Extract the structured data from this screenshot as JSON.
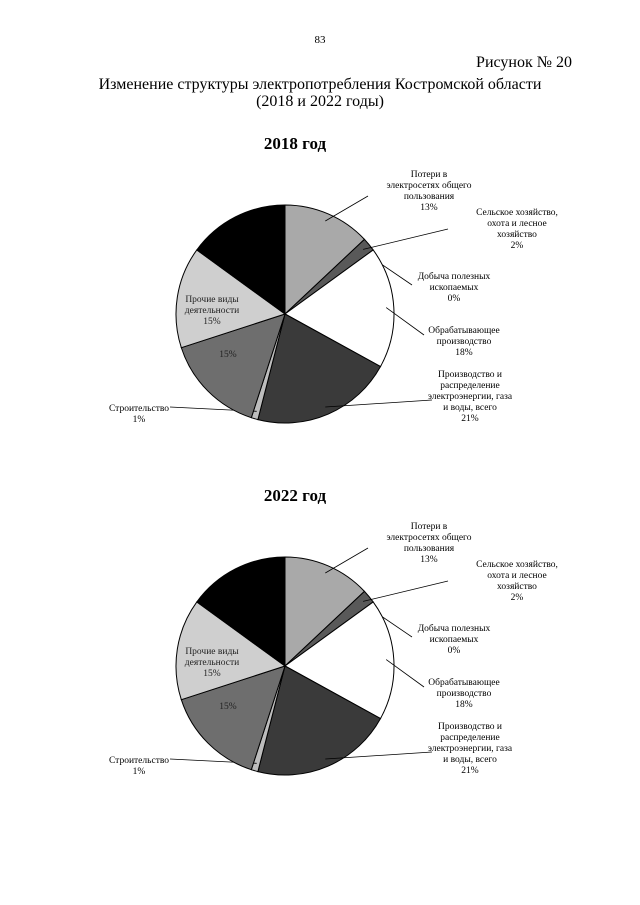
{
  "page": {
    "number": "83"
  },
  "figure": {
    "label": "Рисунок № 20",
    "title_line1": "Изменение структуры электропотребления Костромской области",
    "title_line2": "(2018 и 2022 годы)"
  },
  "colors": {
    "loss": "#a9a9a9",
    "agri": "#595959",
    "mining": "#ffffff",
    "manuf": "#ffffff",
    "energy": "#3a3a3a",
    "constr": "#bdbdbd",
    "transport": "#6e6e6e",
    "other": "#cfcfcf",
    "unlabeled": "#000000"
  },
  "chart_data": [
    {
      "type": "pie",
      "title": "2018 год",
      "slices": [
        {
          "key": "loss",
          "label": [
            "Потери  в",
            "электросетях общего",
            "пользования"
          ],
          "value": 13,
          "value_label": "13%"
        },
        {
          "key": "agri",
          "label": [
            "Сельское хозяйство,",
            "охота и лесное",
            "хозяйство"
          ],
          "value": 2,
          "value_label": "2%"
        },
        {
          "key": "mining",
          "label": [
            "Добыча полезных",
            "ископаемых"
          ],
          "value": 0,
          "value_label": "0%"
        },
        {
          "key": "manuf",
          "label": [
            "Обрабатывающее",
            "производство"
          ],
          "value": 18,
          "value_label": "18%"
        },
        {
          "key": "energy",
          "label": [
            "Производство и",
            "распределение",
            "электроэнергии, газа",
            "и воды, всего"
          ],
          "value": 21,
          "value_label": "21%"
        },
        {
          "key": "constr",
          "label": [
            "Строительство"
          ],
          "value": 1,
          "value_label": "1%"
        },
        {
          "key": "transport",
          "label": [],
          "value": 15,
          "value_label": "15%"
        },
        {
          "key": "other",
          "label": [
            "Прочие виды",
            "деятельности"
          ],
          "value": 15,
          "value_label": "15%"
        },
        {
          "key": "unlabeled",
          "label": [],
          "value": 15,
          "value_label": ""
        }
      ]
    },
    {
      "type": "pie",
      "title": "2022 год",
      "slices": [
        {
          "key": "loss",
          "label": [
            "Потери  в",
            "электросетях общего",
            "пользования"
          ],
          "value": 13,
          "value_label": "13%"
        },
        {
          "key": "agri",
          "label": [
            "Сельское хозяйство,",
            "охота и лесное",
            "хозяйство"
          ],
          "value": 2,
          "value_label": "2%"
        },
        {
          "key": "mining",
          "label": [
            "Добыча полезных",
            "ископаемых"
          ],
          "value": 0,
          "value_label": "0%"
        },
        {
          "key": "manuf",
          "label": [
            "Обрабатывающее",
            "производство"
          ],
          "value": 18,
          "value_label": "18%"
        },
        {
          "key": "energy",
          "label": [
            "Производство и",
            "распределение",
            "электроэнергии, газа",
            "и воды, всего"
          ],
          "value": 21,
          "value_label": "21%"
        },
        {
          "key": "constr",
          "label": [
            "Строительство"
          ],
          "value": 1,
          "value_label": "1%"
        },
        {
          "key": "transport",
          "label": [],
          "value": 15,
          "value_label": "15%"
        },
        {
          "key": "other",
          "label": [
            "Прочие виды",
            "деятельности"
          ],
          "value": 15,
          "value_label": "15%"
        },
        {
          "key": "unlabeled",
          "label": [],
          "value": 15,
          "value_label": ""
        }
      ]
    }
  ]
}
